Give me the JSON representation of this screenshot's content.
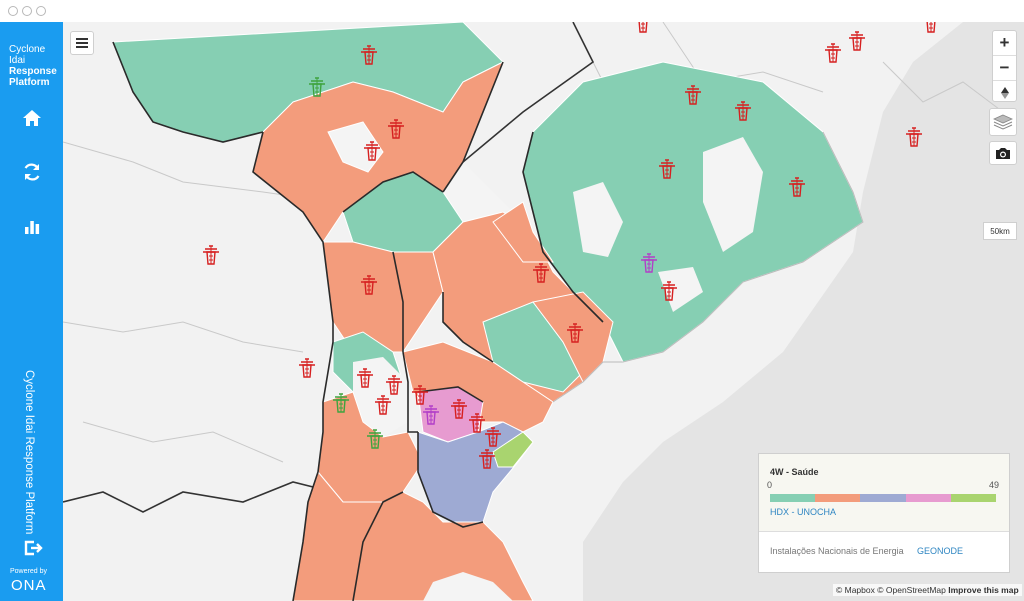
{
  "app": {
    "brand_lines": [
      "Cyclone",
      "Idai",
      "Response",
      "Platform"
    ],
    "vertical_title": "Cyclone Idai Response Platform",
    "powered_by": "Powered by",
    "ona_logo": "ONA"
  },
  "sidebar": {
    "items": [
      {
        "icon": "home-icon"
      },
      {
        "icon": "refresh-icon"
      },
      {
        "icon": "bar-chart-icon"
      }
    ],
    "logout_icon": "logout-icon"
  },
  "map_controls": {
    "menu_icon": "menu-icon",
    "zoom_in": "+",
    "zoom_out": "−",
    "compass_icon": "compass-icon",
    "layers_icon": "layers-icon",
    "camera_icon": "camera-icon"
  },
  "scale_label": "50km",
  "legend": {
    "title": "4W - Saúde",
    "min": "0",
    "max": "49",
    "colors": [
      "#86cfb3",
      "#f39c7c",
      "#9eaad3",
      "#e79bd0",
      "#a9d46f"
    ],
    "source": "HDX - UNOCHA",
    "footer_layer": "Instalações Nacionais de Energia",
    "footer_source": "GEONODE"
  },
  "attribution": {
    "mapbox": "© Mapbox",
    "osm": "© OpenStreetMap",
    "improve": "Improve this map"
  },
  "colors": {
    "sidebar": "#1a9cf0",
    "teal": "#86cfb3",
    "salmon": "#f39c7c",
    "blue": "#9eaad3",
    "pink": "#e79bd0",
    "green": "#a9d46f",
    "marker_red": "#d62020",
    "marker_green": "#3ea43e",
    "marker_purple": "#b23ec8"
  }
}
